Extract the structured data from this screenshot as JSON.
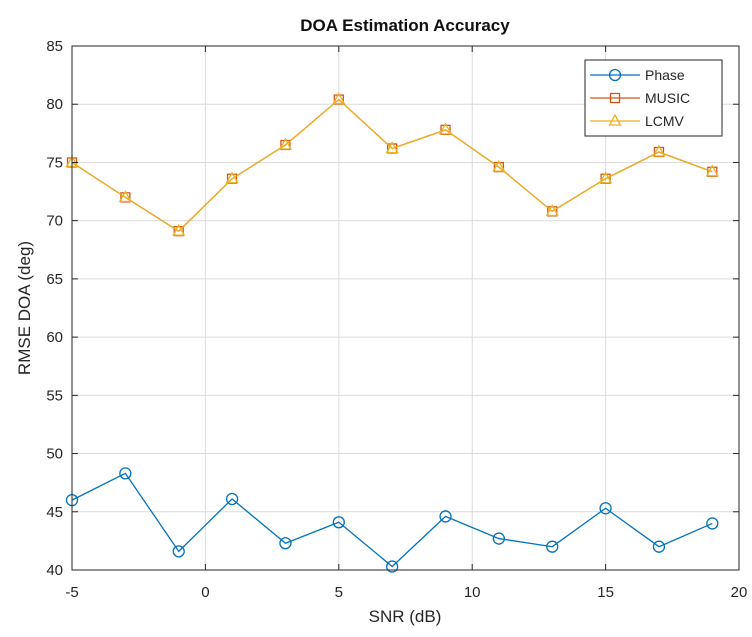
{
  "chart_data": {
    "type": "line",
    "title": "DOA Estimation Accuracy",
    "xlabel": "SNR (dB)",
    "ylabel": "RMSE DOA (deg)",
    "xlim": [
      -5,
      20
    ],
    "ylim": [
      40,
      85
    ],
    "xticks": [
      "-5",
      "0",
      "5",
      "10",
      "15",
      "20"
    ],
    "yticks": [
      "40",
      "45",
      "50",
      "55",
      "60",
      "65",
      "70",
      "75",
      "80",
      "85"
    ],
    "grid": true,
    "legend_position": "top-right",
    "x": [
      -5,
      -3,
      -1,
      1,
      3,
      5,
      7,
      9,
      11,
      13,
      15,
      17,
      19
    ],
    "series": [
      {
        "name": "Phase",
        "marker": "circle",
        "color": "#0072BD",
        "values": [
          46.0,
          48.3,
          41.6,
          46.1,
          42.3,
          44.1,
          40.3,
          44.6,
          42.7,
          42.0,
          45.3,
          42.0,
          44.0
        ]
      },
      {
        "name": "MUSIC",
        "marker": "square",
        "color": "#D95319",
        "values": [
          75.0,
          72.0,
          69.1,
          73.6,
          76.5,
          80.4,
          76.2,
          77.8,
          74.6,
          70.8,
          73.6,
          75.9,
          74.2
        ]
      },
      {
        "name": "LCMV",
        "marker": "triangle",
        "color": "#EDB120",
        "values": [
          75.0,
          72.0,
          69.1,
          73.6,
          76.5,
          80.4,
          76.2,
          77.8,
          74.6,
          70.8,
          73.6,
          75.9,
          74.2
        ]
      }
    ]
  }
}
